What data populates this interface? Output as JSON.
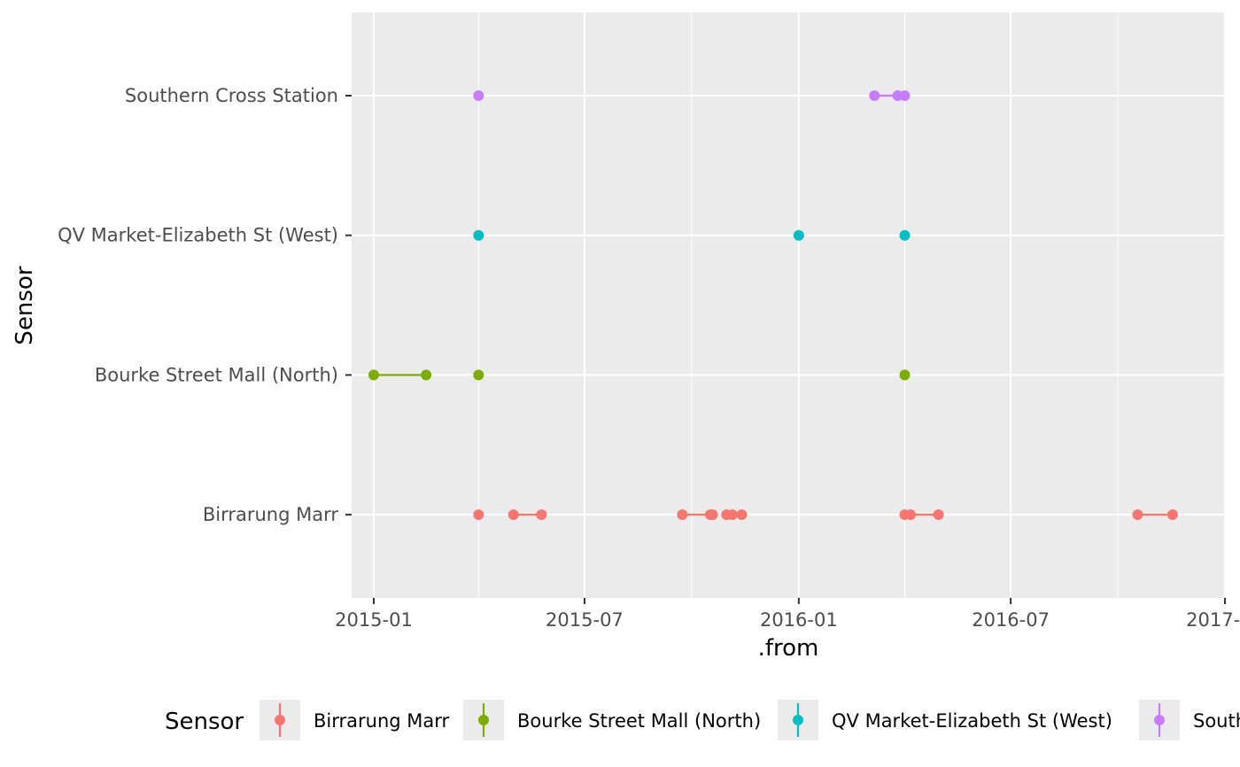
{
  "chart_data": {
    "type": "scatter",
    "title": "",
    "xlabel": ".from",
    "ylabel": "Sensor",
    "x_type": "date",
    "xlim": [
      "2014-12-13",
      "2017-01-01"
    ],
    "x_ticks": [
      "2015-01",
      "2015-07",
      "2016-01",
      "2016-07",
      "2017-01"
    ],
    "x_tick_labels": [
      "2015-01",
      "2015-07",
      "2016-01",
      "2016-07",
      "2017-01"
    ],
    "categories": [
      "Birrarung Marr",
      "Bourke Street Mall (North)",
      "QV Market-Elizabeth St (West)",
      "Southern Cross Station"
    ],
    "grid": true,
    "legend": {
      "title": "Sensor",
      "position": "bottom"
    },
    "series": [
      {
        "name": "Birrarung Marr",
        "color": "#F8766D",
        "segments": [
          [
            "2015-04-01",
            "2015-04-01"
          ],
          [
            "2015-05-01",
            "2015-05-25"
          ],
          [
            "2015-09-23",
            "2015-10-19"
          ],
          [
            "2015-10-31",
            "2015-11-13"
          ],
          [
            "2016-04-01",
            "2016-04-30"
          ],
          [
            "2016-10-18",
            "2016-11-17"
          ]
        ],
        "points": [
          "2015-04-01",
          "2015-05-01",
          "2015-05-25",
          "2015-09-23",
          "2015-10-17",
          "2015-10-19",
          "2015-10-31",
          "2015-11-05",
          "2015-11-13",
          "2016-04-01",
          "2016-04-06",
          "2016-04-30",
          "2016-10-18",
          "2016-11-17"
        ]
      },
      {
        "name": "Bourke Street Mall (North)",
        "color": "#7CAE00",
        "segments": [
          [
            "2015-01-01",
            "2015-02-15"
          ],
          [
            "2015-04-01",
            "2015-04-01"
          ],
          [
            "2016-04-01",
            "2016-04-01"
          ]
        ],
        "points": [
          "2015-01-01",
          "2015-02-15",
          "2015-04-01",
          "2016-04-01"
        ]
      },
      {
        "name": "QV Market-Elizabeth St (West)",
        "color": "#00BFC4",
        "segments": [
          [
            "2015-04-01",
            "2015-04-01"
          ],
          [
            "2016-01-01",
            "2016-01-01"
          ],
          [
            "2016-04-01",
            "2016-04-01"
          ]
        ],
        "points": [
          "2015-04-01",
          "2016-01-01",
          "2016-04-01"
        ]
      },
      {
        "name": "Southern Cross Station",
        "color": "#C77CFF",
        "segments": [
          [
            "2015-04-01",
            "2015-04-01"
          ],
          [
            "2016-03-06",
            "2016-04-01"
          ]
        ],
        "points": [
          "2015-04-01",
          "2016-03-06",
          "2016-03-26",
          "2016-04-01"
        ]
      }
    ]
  }
}
